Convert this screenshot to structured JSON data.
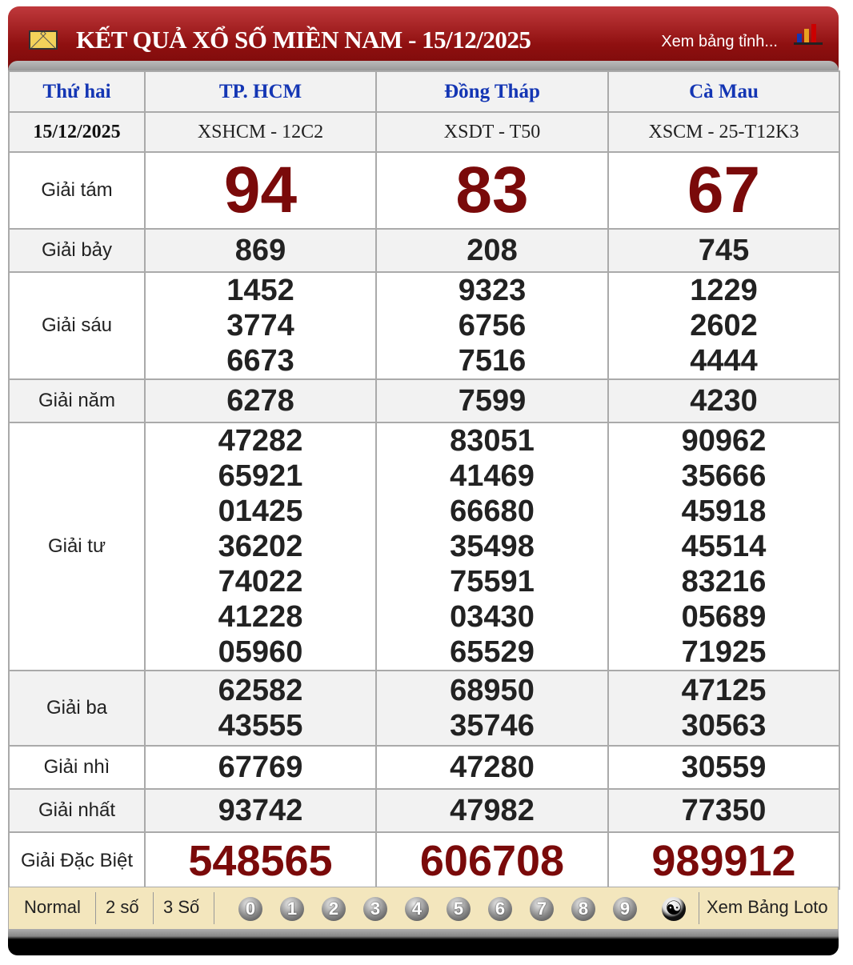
{
  "header": {
    "title": "KẾT QUẢ XỔ SỐ MIỀN NAM - 15/12/2025",
    "link": "Xem bảng tỉnh...",
    "icons": [
      "mail-icon",
      "bar-chart-icon"
    ]
  },
  "table": {
    "day": "Thứ hai",
    "date": "15/12/2025",
    "provinces": [
      {
        "name": "TP. HCM",
        "code": "XSHCM - 12C2"
      },
      {
        "name": "Đồng Tháp",
        "code": "XSDT - T50"
      },
      {
        "name": "Cà Mau",
        "code": "XSCM - 25-T12K3"
      }
    ],
    "prizes": [
      {
        "label": "Giải tám",
        "values": [
          [
            "94"
          ],
          [
            "83"
          ],
          [
            "67"
          ]
        ]
      },
      {
        "label": "Giải bảy",
        "values": [
          [
            "869"
          ],
          [
            "208"
          ],
          [
            "745"
          ]
        ]
      },
      {
        "label": "Giải sáu",
        "values": [
          [
            "1452",
            "3774",
            "6673"
          ],
          [
            "9323",
            "6756",
            "7516"
          ],
          [
            "1229",
            "2602",
            "4444"
          ]
        ]
      },
      {
        "label": "Giải năm",
        "values": [
          [
            "6278"
          ],
          [
            "7599"
          ],
          [
            "4230"
          ]
        ]
      },
      {
        "label": "Giải tư",
        "values": [
          [
            "47282",
            "65921",
            "01425",
            "36202",
            "74022",
            "41228",
            "05960"
          ],
          [
            "83051",
            "41469",
            "66680",
            "35498",
            "75591",
            "03430",
            "65529"
          ],
          [
            "90962",
            "35666",
            "45918",
            "45514",
            "83216",
            "05689",
            "71925"
          ]
        ]
      },
      {
        "label": "Giải ba",
        "values": [
          [
            "62582",
            "43555"
          ],
          [
            "68950",
            "35746"
          ],
          [
            "47125",
            "30563"
          ]
        ]
      },
      {
        "label": "Giải nhì",
        "values": [
          [
            "67769"
          ],
          [
            "47280"
          ],
          [
            "30559"
          ]
        ]
      },
      {
        "label": "Giải nhất",
        "values": [
          [
            "93742"
          ],
          [
            "47982"
          ],
          [
            "77350"
          ]
        ]
      },
      {
        "label": "Giải Đặc Biệt",
        "values": [
          [
            "548565"
          ],
          [
            "606708"
          ],
          [
            "989912"
          ]
        ]
      }
    ]
  },
  "footer": {
    "normal": "Normal",
    "two": "2 số",
    "three": "3 Số",
    "digits": [
      "0",
      "1",
      "2",
      "3",
      "4",
      "5",
      "6",
      "7",
      "8",
      "9"
    ],
    "yinyang": "☯",
    "loto": "Xem Bảng Loto"
  },
  "colors": {
    "header": "#8f1010",
    "province": "#1436b4",
    "highlight": "#7a0a0a",
    "footer": "#f3e6bd"
  }
}
